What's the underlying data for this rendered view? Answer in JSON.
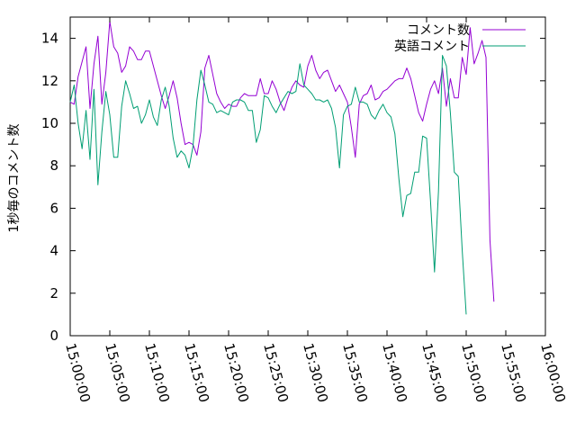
{
  "chart_data": {
    "type": "line",
    "title": "",
    "xlabel": "",
    "ylabel": "1秒毎のコメント数",
    "xlim": [
      "15:00:00",
      "16:00:00"
    ],
    "ylim": [
      0,
      15
    ],
    "x_ticks": [
      "15:00:00",
      "15:05:00",
      "15:10:00",
      "15:15:00",
      "15:20:00",
      "15:25:00",
      "15:30:00",
      "15:35:00",
      "15:40:00",
      "15:45:00",
      "15:50:00",
      "15:55:00",
      "16:00:00"
    ],
    "y_ticks": [
      "0",
      "2",
      "4",
      "6",
      "8",
      "10",
      "12",
      "14"
    ],
    "grid": false,
    "legend": "top-right",
    "series": [
      {
        "name": "コメント数",
        "color": "#9400d3",
        "points": [
          [
            "15:00:00",
            11.0
          ],
          [
            "15:00:30",
            10.9
          ],
          [
            "15:01:00",
            12.2
          ],
          [
            "15:01:30",
            12.9
          ],
          [
            "15:02:00",
            13.6
          ],
          [
            "15:02:30",
            10.7
          ],
          [
            "15:03:00",
            12.8
          ],
          [
            "15:03:30",
            14.1
          ],
          [
            "15:04:00",
            10.9
          ],
          [
            "15:04:30",
            12.4
          ],
          [
            "15:05:00",
            14.8
          ],
          [
            "15:05:30",
            13.6
          ],
          [
            "15:06:00",
            13.3
          ],
          [
            "15:06:30",
            12.4
          ],
          [
            "15:07:00",
            12.7
          ],
          [
            "15:07:30",
            13.6
          ],
          [
            "15:08:00",
            13.4
          ],
          [
            "15:08:30",
            13.0
          ],
          [
            "15:09:00",
            13.0
          ],
          [
            "15:09:30",
            13.4
          ],
          [
            "15:10:00",
            13.4
          ],
          [
            "15:10:30",
            12.7
          ],
          [
            "15:11:00",
            12.0
          ],
          [
            "15:11:30",
            11.3
          ],
          [
            "15:12:00",
            10.7
          ],
          [
            "15:12:30",
            11.3
          ],
          [
            "15:13:00",
            12.0
          ],
          [
            "15:13:30",
            11.2
          ],
          [
            "15:14:00",
            10.0
          ],
          [
            "15:14:30",
            9.0
          ],
          [
            "15:15:00",
            9.1
          ],
          [
            "15:15:30",
            9.0
          ],
          [
            "15:16:00",
            8.5
          ],
          [
            "15:16:30",
            9.6
          ],
          [
            "15:17:00",
            12.6
          ],
          [
            "15:17:30",
            13.2
          ],
          [
            "15:18:00",
            12.3
          ],
          [
            "15:18:30",
            11.4
          ],
          [
            "15:19:00",
            11.0
          ],
          [
            "15:19:30",
            10.7
          ],
          [
            "15:20:00",
            10.9
          ],
          [
            "15:20:30",
            10.8
          ],
          [
            "15:21:00",
            10.8
          ],
          [
            "15:21:30",
            11.2
          ],
          [
            "15:22:00",
            11.4
          ],
          [
            "15:22:30",
            11.3
          ],
          [
            "15:23:00",
            11.3
          ],
          [
            "15:23:30",
            11.3
          ],
          [
            "15:24:00",
            12.1
          ],
          [
            "15:24:30",
            11.4
          ],
          [
            "15:25:00",
            11.4
          ],
          [
            "15:25:30",
            12.0
          ],
          [
            "15:26:00",
            11.6
          ],
          [
            "15:26:30",
            11.0
          ],
          [
            "15:27:00",
            10.6
          ],
          [
            "15:27:30",
            11.2
          ],
          [
            "15:28:00",
            11.7
          ],
          [
            "15:28:30",
            12.0
          ],
          [
            "15:29:00",
            11.8
          ],
          [
            "15:29:30",
            11.7
          ],
          [
            "15:30:00",
            12.7
          ],
          [
            "15:30:30",
            13.2
          ],
          [
            "15:31:00",
            12.5
          ],
          [
            "15:31:30",
            12.1
          ],
          [
            "15:32:00",
            12.4
          ],
          [
            "15:32:30",
            12.5
          ],
          [
            "15:33:00",
            12.0
          ],
          [
            "15:33:30",
            11.5
          ],
          [
            "15:34:00",
            11.8
          ],
          [
            "15:34:30",
            11.4
          ],
          [
            "15:35:00",
            11.0
          ],
          [
            "15:35:30",
            9.8
          ],
          [
            "15:36:00",
            8.4
          ],
          [
            "15:36:30",
            10.9
          ],
          [
            "15:37:00",
            11.3
          ],
          [
            "15:37:30",
            11.4
          ],
          [
            "15:38:00",
            11.8
          ],
          [
            "15:38:30",
            11.1
          ],
          [
            "15:39:00",
            11.2
          ],
          [
            "15:39:30",
            11.5
          ],
          [
            "15:40:00",
            11.6
          ],
          [
            "15:40:30",
            11.8
          ],
          [
            "15:41:00",
            12.0
          ],
          [
            "15:41:30",
            12.1
          ],
          [
            "15:42:00",
            12.1
          ],
          [
            "15:42:30",
            12.6
          ],
          [
            "15:43:00",
            12.1
          ],
          [
            "15:43:30",
            11.3
          ],
          [
            "15:44:00",
            10.5
          ],
          [
            "15:44:30",
            10.1
          ],
          [
            "15:45:00",
            10.9
          ],
          [
            "15:45:30",
            11.6
          ],
          [
            "15:46:00",
            12.0
          ],
          [
            "15:46:30",
            11.4
          ],
          [
            "15:47:00",
            12.6
          ],
          [
            "15:47:30",
            10.8
          ],
          [
            "15:48:00",
            12.1
          ],
          [
            "15:48:30",
            11.2
          ],
          [
            "15:49:00",
            11.2
          ],
          [
            "15:49:30",
            13.1
          ],
          [
            "15:50:00",
            12.3
          ],
          [
            "15:50:30",
            14.5
          ],
          [
            "15:51:00",
            12.8
          ],
          [
            "15:51:30",
            13.3
          ],
          [
            "15:52:00",
            13.9
          ],
          [
            "15:52:30",
            13.1
          ],
          [
            "15:53:00",
            4.5
          ],
          [
            "15:53:30",
            1.6
          ]
        ]
      },
      {
        "name": "英語コメント",
        "color": "#009e73",
        "points": [
          [
            "15:00:00",
            11.0
          ],
          [
            "15:00:30",
            11.8
          ],
          [
            "15:01:00",
            10.0
          ],
          [
            "15:01:30",
            8.8
          ],
          [
            "15:02:00",
            10.6
          ],
          [
            "15:02:30",
            8.3
          ],
          [
            "15:03:00",
            11.6
          ],
          [
            "15:03:30",
            7.1
          ],
          [
            "15:04:00",
            9.6
          ],
          [
            "15:04:30",
            11.5
          ],
          [
            "15:05:00",
            10.4
          ],
          [
            "15:05:30",
            8.4
          ],
          [
            "15:06:00",
            8.4
          ],
          [
            "15:06:30",
            10.8
          ],
          [
            "15:07:00",
            12.0
          ],
          [
            "15:07:30",
            11.4
          ],
          [
            "15:08:00",
            10.7
          ],
          [
            "15:08:30",
            10.8
          ],
          [
            "15:09:00",
            10.0
          ],
          [
            "15:09:30",
            10.4
          ],
          [
            "15:10:00",
            11.1
          ],
          [
            "15:10:30",
            10.3
          ],
          [
            "15:11:00",
            9.9
          ],
          [
            "15:11:30",
            11.1
          ],
          [
            "15:12:00",
            11.7
          ],
          [
            "15:12:30",
            10.8
          ],
          [
            "15:13:00",
            9.3
          ],
          [
            "15:13:30",
            8.4
          ],
          [
            "15:14:00",
            8.7
          ],
          [
            "15:14:30",
            8.5
          ],
          [
            "15:15:00",
            7.9
          ],
          [
            "15:15:30",
            8.9
          ],
          [
            "15:16:00",
            11.1
          ],
          [
            "15:16:30",
            12.5
          ],
          [
            "15:17:00",
            11.8
          ],
          [
            "15:17:30",
            11.0
          ],
          [
            "15:18:00",
            10.9
          ],
          [
            "15:18:30",
            10.5
          ],
          [
            "15:19:00",
            10.6
          ],
          [
            "15:19:30",
            10.5
          ],
          [
            "15:20:00",
            10.4
          ],
          [
            "15:20:30",
            11.0
          ],
          [
            "15:21:00",
            11.1
          ],
          [
            "15:21:30",
            11.1
          ],
          [
            "15:22:00",
            11.0
          ],
          [
            "15:22:30",
            10.6
          ],
          [
            "15:23:00",
            10.6
          ],
          [
            "15:23:30",
            9.1
          ],
          [
            "15:24:00",
            9.7
          ],
          [
            "15:24:30",
            11.3
          ],
          [
            "15:25:00",
            11.2
          ],
          [
            "15:25:30",
            10.8
          ],
          [
            "15:26:00",
            10.5
          ],
          [
            "15:26:30",
            10.9
          ],
          [
            "15:27:00",
            11.2
          ],
          [
            "15:27:30",
            11.5
          ],
          [
            "15:28:00",
            11.4
          ],
          [
            "15:28:30",
            11.5
          ],
          [
            "15:29:00",
            12.8
          ],
          [
            "15:29:30",
            11.8
          ],
          [
            "15:30:00",
            11.6
          ],
          [
            "15:30:30",
            11.4
          ],
          [
            "15:31:00",
            11.1
          ],
          [
            "15:31:30",
            11.1
          ],
          [
            "15:32:00",
            11.0
          ],
          [
            "15:32:30",
            11.1
          ],
          [
            "15:33:00",
            10.7
          ],
          [
            "15:33:30",
            9.8
          ],
          [
            "15:34:00",
            7.9
          ],
          [
            "15:34:30",
            10.4
          ],
          [
            "15:35:00",
            10.8
          ],
          [
            "15:35:30",
            10.9
          ],
          [
            "15:36:00",
            11.7
          ],
          [
            "15:36:30",
            11.0
          ],
          [
            "15:37:00",
            11.0
          ],
          [
            "15:37:30",
            10.9
          ],
          [
            "15:38:00",
            10.4
          ],
          [
            "15:38:30",
            10.2
          ],
          [
            "15:39:00",
            10.6
          ],
          [
            "15:39:30",
            10.9
          ],
          [
            "15:40:00",
            10.5
          ],
          [
            "15:40:30",
            10.3
          ],
          [
            "15:41:00",
            9.5
          ],
          [
            "15:41:30",
            7.4
          ],
          [
            "15:42:00",
            5.6
          ],
          [
            "15:42:30",
            6.6
          ],
          [
            "15:43:00",
            6.7
          ],
          [
            "15:43:30",
            7.7
          ],
          [
            "15:44:00",
            7.7
          ],
          [
            "15:44:30",
            9.4
          ],
          [
            "15:45:00",
            9.3
          ],
          [
            "15:45:30",
            6.3
          ],
          [
            "15:46:00",
            3.0
          ],
          [
            "15:46:30",
            6.8
          ],
          [
            "15:47:00",
            13.2
          ],
          [
            "15:47:30",
            12.7
          ],
          [
            "15:48:00",
            10.5
          ],
          [
            "15:48:30",
            7.7
          ],
          [
            "15:49:00",
            7.5
          ],
          [
            "15:49:30",
            4.0
          ],
          [
            "15:50:00",
            1.0
          ]
        ]
      }
    ]
  }
}
